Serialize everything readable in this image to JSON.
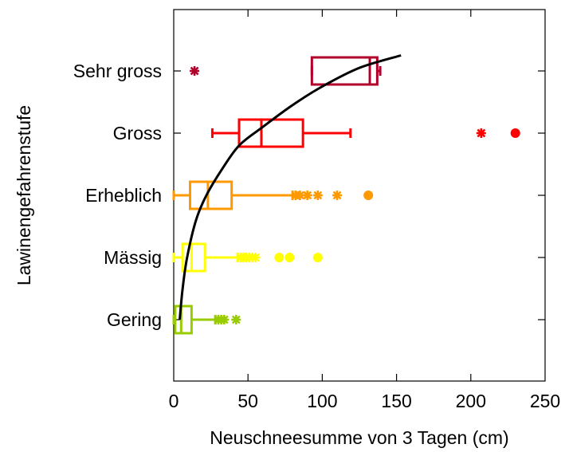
{
  "chart_data": {
    "type": "box",
    "orientation": "horizontal",
    "title": "",
    "xlabel": "Neuschneesumme von 3 Tagen (cm)",
    "ylabel": "Lawinengefahrenstufe",
    "xlim": [
      0,
      250
    ],
    "xticks": [
      "0",
      "50",
      "100",
      "150",
      "200",
      "250"
    ],
    "categories": [
      {
        "label": "Gering",
        "color": "#99cc00",
        "stats": {
          "whisker_low": 0,
          "q1": 1,
          "median": 5,
          "q3": 12,
          "whisker_high": 28
        },
        "outliers": [
          {
            "x": 30,
            "m": "x"
          },
          {
            "x": 32,
            "m": "x"
          },
          {
            "x": 34,
            "m": "x"
          },
          {
            "x": 42,
            "m": "x"
          }
        ]
      },
      {
        "label": "Mässig",
        "color": "#ffff00",
        "stats": {
          "whisker_low": 0,
          "q1": 6,
          "median": 12,
          "q3": 21,
          "whisker_high": 43
        },
        "outliers": [
          {
            "x": 45,
            "m": "x"
          },
          {
            "x": 47,
            "m": "x"
          },
          {
            "x": 49,
            "m": "x"
          },
          {
            "x": 51,
            "m": "x"
          },
          {
            "x": 53,
            "m": "x"
          },
          {
            "x": 55,
            "m": "x"
          },
          {
            "x": 71,
            "m": "o"
          },
          {
            "x": 78,
            "m": "o"
          },
          {
            "x": 97,
            "m": "o"
          }
        ]
      },
      {
        "label": "Erheblich",
        "color": "#ff9900",
        "stats": {
          "whisker_low": 0,
          "q1": 11,
          "median": 23,
          "q3": 39,
          "whisker_high": 80
        },
        "outliers": [
          {
            "x": 82,
            "m": "x"
          },
          {
            "x": 85,
            "m": "x"
          },
          {
            "x": 90,
            "m": "x"
          },
          {
            "x": 97,
            "m": "x"
          },
          {
            "x": 110,
            "m": "x"
          },
          {
            "x": 131,
            "m": "o"
          }
        ]
      },
      {
        "label": "Gross",
        "color": "#ff0000",
        "stats": {
          "whisker_low": 26,
          "q1": 44,
          "median": 59,
          "q3": 87,
          "whisker_high": 119
        },
        "outliers": [
          {
            "x": 207,
            "m": "x"
          },
          {
            "x": 230,
            "m": "o"
          }
        ]
      },
      {
        "label": "Sehr gross",
        "color": "#b2002b",
        "stats": {
          "whisker_low": 93,
          "q1": 93,
          "median": 132,
          "q3": 137,
          "whisker_high": 139
        },
        "outliers": [
          {
            "x": 14,
            "m": "x"
          }
        ]
      }
    ],
    "curve": {
      "color": "#000000",
      "points": [
        [
          4,
          1.0
        ],
        [
          6,
          1.5
        ],
        [
          9,
          2.0
        ],
        [
          15,
          2.6
        ],
        [
          22,
          3.0
        ],
        [
          32,
          3.4
        ],
        [
          44,
          3.8
        ],
        [
          60,
          4.1
        ],
        [
          80,
          4.45
        ],
        [
          100,
          4.75
        ],
        [
          125,
          5.05
        ],
        [
          153,
          5.25
        ]
      ]
    },
    "grid": false,
    "legend": "none"
  }
}
